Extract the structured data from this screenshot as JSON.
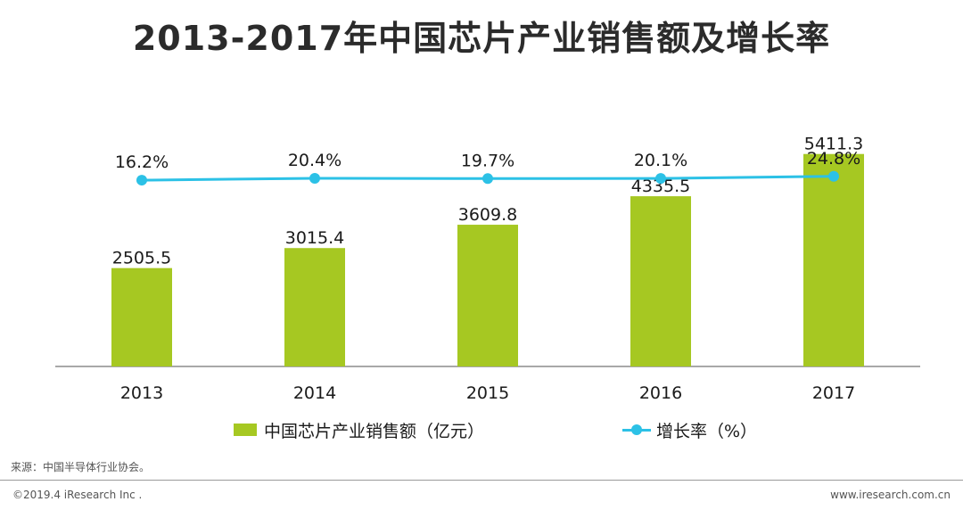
{
  "title": "2013-2017年中国芯片产业销售额及增长率",
  "chart_data": {
    "type": "bar",
    "title": "2013-2017年中国芯片产业销售额及增长率",
    "categories": [
      "2013",
      "2014",
      "2015",
      "2016",
      "2017"
    ],
    "series": [
      {
        "name": "中国芯片产业销售额（亿元）",
        "type": "bar",
        "values": [
          2505.5,
          3015.4,
          3609.8,
          4335.5,
          5411.3
        ],
        "labels": [
          "2505.5",
          "3015.4",
          "3609.8",
          "4335.5",
          "5411.3"
        ],
        "color": "#a6c822"
      },
      {
        "name": "增长率（%）",
        "type": "line",
        "values": [
          16.2,
          20.4,
          19.7,
          20.1,
          24.8
        ],
        "labels": [
          "16.2%",
          "20.4%",
          "19.7%",
          "20.1%",
          "24.8%"
        ],
        "color": "#2cc1e6"
      }
    ],
    "bar_ylim": [
      0,
      5700
    ],
    "line_ylim": [
      -400,
      100
    ],
    "xlabel": "",
    "ylabel": "",
    "legend_position": "bottom"
  },
  "legend": {
    "bar_label": "中国芯片产业销售额（亿元）",
    "line_label": "增长率（%）"
  },
  "footer": {
    "source": "来源：中国半导体行业协会。",
    "copyright": "©2019.4 iResearch Inc .",
    "website": "www.iresearch.com.cn"
  }
}
